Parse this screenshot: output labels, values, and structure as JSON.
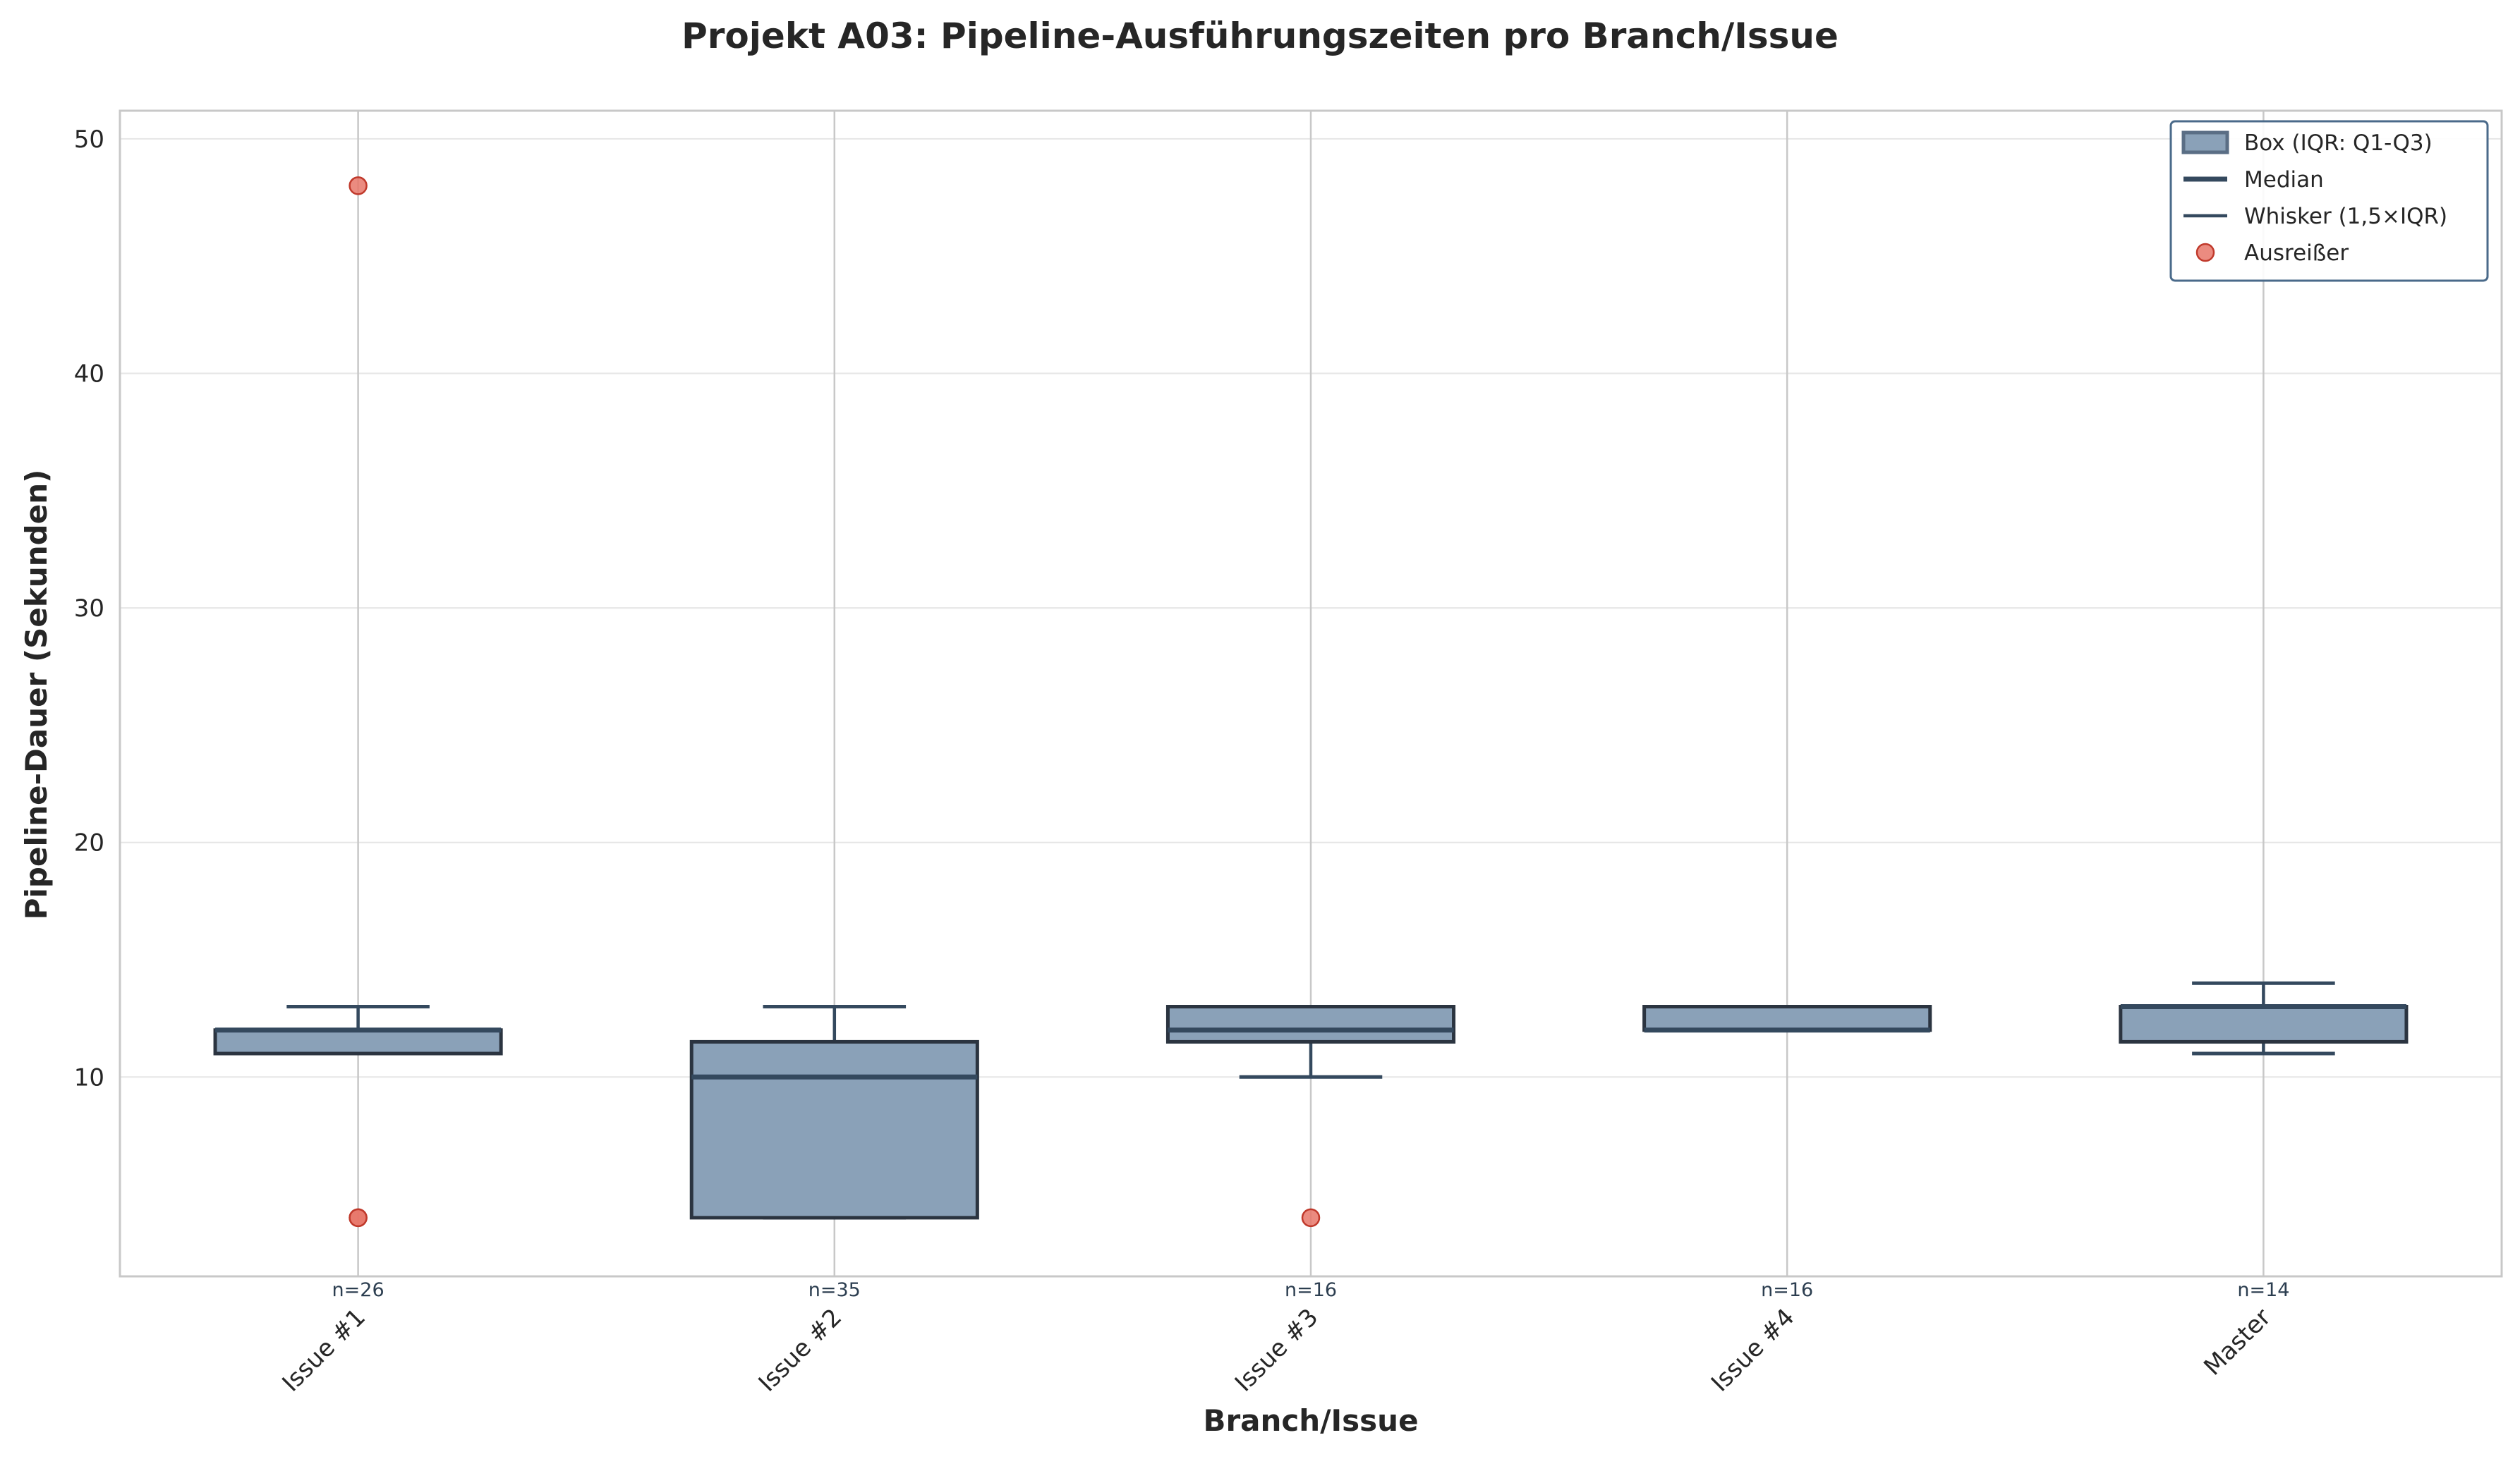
{
  "chart_data": {
    "type": "box",
    "title": "Projekt A03: Pipeline-Ausführungszeiten pro Branch/Issue",
    "xlabel": "Branch/Issue",
    "ylabel": "Pipeline-Dauer (Sekunden)",
    "ylim": [
      1.5,
      51.2
    ],
    "yticks": [
      10,
      20,
      30,
      40,
      50
    ],
    "grid": true,
    "legend_position": "top-right",
    "categories": [
      "Issue #1",
      "Issue #2",
      "Issue #3",
      "Issue #4",
      "Master"
    ],
    "boxes": [
      {
        "category": "Issue #1",
        "n_label": "n=26",
        "whisker_low": 11,
        "q1": 11,
        "median": 12,
        "q3": 12,
        "whisker_high": 13,
        "outliers": [
          48,
          4,
          4
        ]
      },
      {
        "category": "Issue #2",
        "n_label": "n=35",
        "whisker_low": 4,
        "q1": 4,
        "median": 10,
        "q3": 11.5,
        "whisker_high": 13,
        "outliers": []
      },
      {
        "category": "Issue #3",
        "n_label": "n=16",
        "whisker_low": 10,
        "q1": 11.5,
        "median": 12,
        "q3": 13,
        "whisker_high": 13,
        "outliers": [
          4
        ]
      },
      {
        "category": "Issue #4",
        "n_label": "n=16",
        "whisker_low": 12,
        "q1": 12,
        "median": 12,
        "q3": 13,
        "whisker_high": 13,
        "outliers": []
      },
      {
        "category": "Master",
        "n_label": "n=14",
        "whisker_low": 11,
        "q1": 11.5,
        "median": 13,
        "q3": 13,
        "whisker_high": 14,
        "outliers": []
      }
    ],
    "legend": [
      {
        "kind": "box",
        "label": "Box (IQR: Q1-Q3)"
      },
      {
        "kind": "median",
        "label": "Median"
      },
      {
        "kind": "whisker",
        "label": "Whisker (1,5×IQR)"
      },
      {
        "kind": "outlier",
        "label": "Ausreißer"
      }
    ],
    "colors": {
      "box_fill": "#8aa1b8",
      "box_edge": "#2b3440",
      "median": "#34495e",
      "whisker": "#34495e",
      "outlier_fill": "#e8776a",
      "outlier_edge": "#c0392b",
      "grid": "#e6e6e6",
      "vgrid": "#c8c8c8",
      "frame": "#c8c8c8",
      "legend_edge": "#4a6a8a"
    }
  }
}
